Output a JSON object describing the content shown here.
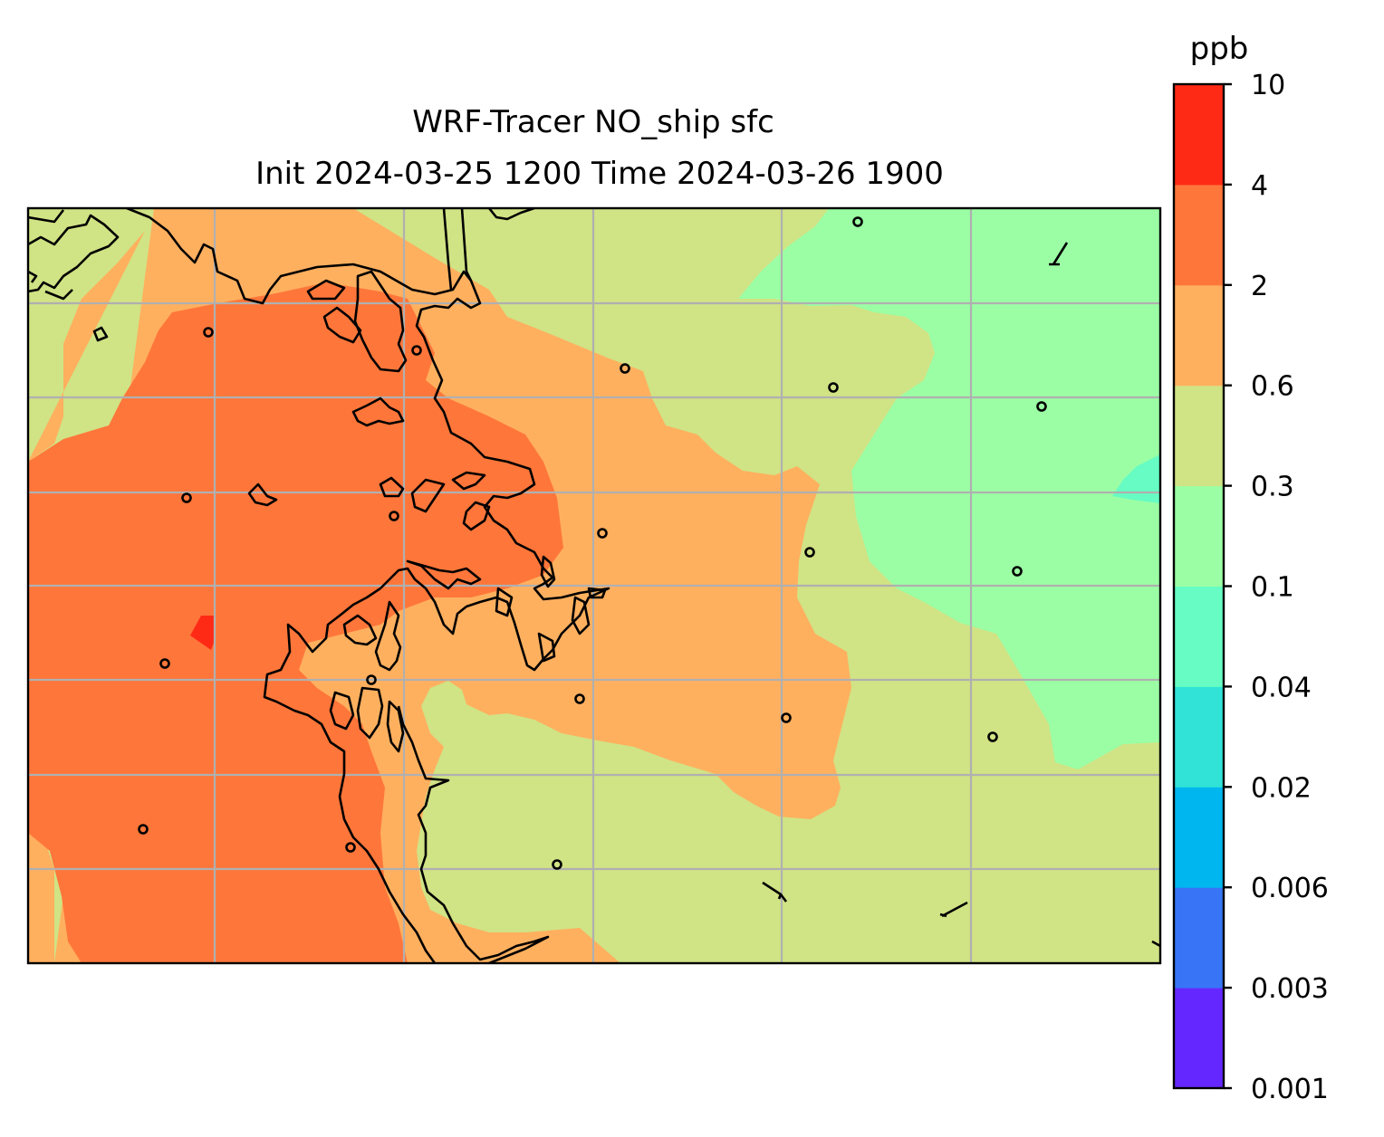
{
  "title": {
    "line1": "WRF-Tracer NO_ship sfc",
    "line2": "Init 2024-03-25 1200 Time 2024-03-26 1900"
  },
  "colorbar": {
    "unit": "ppb",
    "levels": [
      "0.001",
      "0.003",
      "0.006",
      "0.02",
      "0.04",
      "0.1",
      "0.3",
      "0.6",
      "2",
      "4",
      "10"
    ],
    "colors": [
      "#6527ff",
      "#3875f6",
      "#00b6ef",
      "#30e3d6",
      "#66fcc3",
      "#9bfea4",
      "#d0e385",
      "#ffb05f",
      "#ff763a",
      "#ff2a16"
    ]
  },
  "map": {
    "field": "NO_ship",
    "level": "sfc",
    "gridlines": true,
    "coastline_color": "#000000",
    "gridline_color": "#b0b0b0"
  }
}
